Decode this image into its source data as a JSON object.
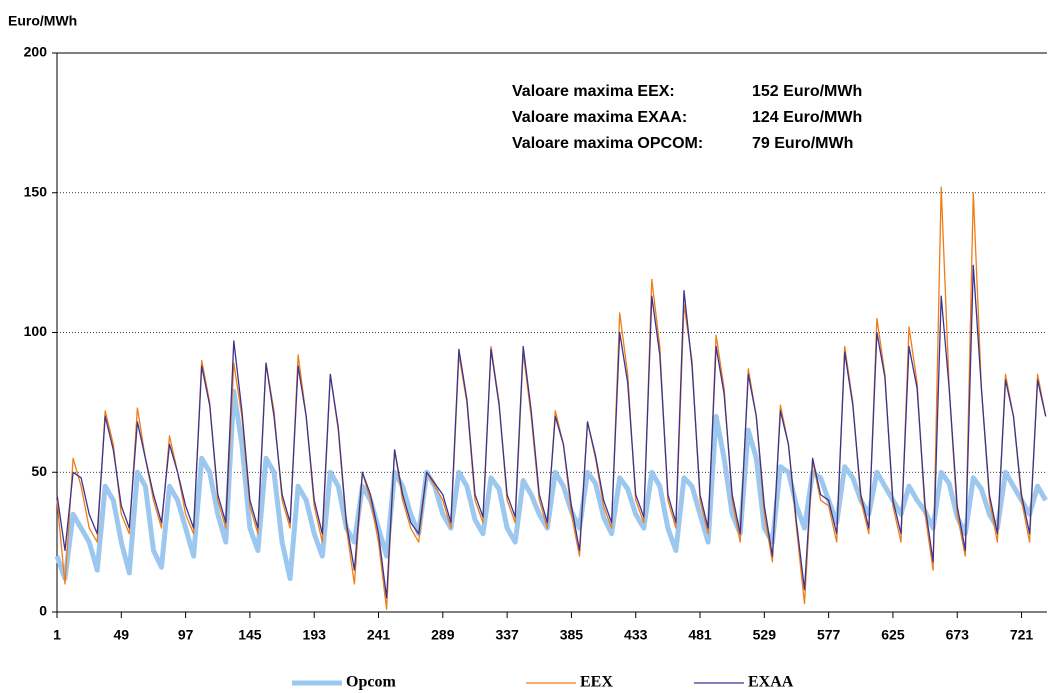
{
  "chart_data": {
    "type": "line",
    "y_label": "Euro/MWh",
    "annotations": [
      {
        "text": "Valoare maxima EEX:",
        "value_text": "152 Euro/MWh",
        "color": "#f07c18"
      },
      {
        "text": "Valoare maxima EXAA:",
        "value_text": "124 Euro/MWh",
        "color": "#3a3591"
      },
      {
        "text": "Valoare maxima OPCOM:",
        "value_text": "79 Euro/MWh",
        "color": "#9cc8f0"
      }
    ],
    "x": [
      1,
      7,
      13,
      19,
      25,
      31,
      37,
      43,
      49,
      55,
      61,
      67,
      73,
      79,
      85,
      91,
      97,
      103,
      109,
      115,
      121,
      127,
      133,
      139,
      145,
      151,
      157,
      163,
      169,
      175,
      181,
      187,
      193,
      199,
      205,
      211,
      217,
      223,
      229,
      235,
      241,
      247,
      253,
      259,
      265,
      271,
      277,
      283,
      289,
      295,
      301,
      307,
      313,
      319,
      325,
      331,
      337,
      343,
      349,
      355,
      361,
      367,
      373,
      379,
      385,
      391,
      397,
      403,
      409,
      415,
      421,
      427,
      433,
      439,
      445,
      451,
      457,
      463,
      469,
      475,
      481,
      487,
      493,
      499,
      505,
      511,
      517,
      523,
      529,
      535,
      541,
      547,
      553,
      559,
      565,
      571,
      577,
      583,
      589,
      595,
      601,
      607,
      613,
      619,
      625,
      631,
      637,
      643,
      649,
      655,
      661,
      667,
      673,
      679,
      685,
      691,
      697,
      703,
      709,
      715,
      721,
      727,
      733,
      739
    ],
    "series": [
      {
        "name": "Opcom",
        "color": "#9cc8f0",
        "width": 5,
        "values": [
          20,
          12,
          35,
          30,
          25,
          15,
          45,
          40,
          25,
          14,
          50,
          45,
          22,
          16,
          45,
          40,
          30,
          20,
          55,
          50,
          35,
          25,
          79,
          60,
          30,
          22,
          55,
          50,
          25,
          12,
          45,
          40,
          28,
          20,
          50,
          45,
          30,
          25,
          45,
          40,
          30,
          20,
          50,
          45,
          35,
          28,
          50,
          45,
          35,
          30,
          50,
          45,
          33,
          28,
          48,
          44,
          30,
          25,
          47,
          42,
          35,
          30,
          50,
          45,
          36,
          30,
          50,
          46,
          34,
          28,
          48,
          44,
          35,
          30,
          50,
          45,
          30,
          22,
          48,
          45,
          35,
          25,
          70,
          55,
          35,
          28,
          65,
          55,
          30,
          25,
          52,
          50,
          38,
          30,
          50,
          48,
          40,
          32,
          52,
          48,
          40,
          35,
          50,
          45,
          40,
          35,
          45,
          40,
          36,
          30,
          50,
          46,
          34,
          28,
          48,
          44,
          35,
          30,
          50,
          45,
          40,
          35,
          45,
          40
        ]
      },
      {
        "name": "EEX",
        "color": "#f07c18",
        "width": 1.3,
        "values": [
          40,
          10,
          55,
          45,
          30,
          25,
          72,
          60,
          35,
          28,
          73,
          55,
          40,
          30,
          63,
          50,
          35,
          28,
          90,
          75,
          40,
          30,
          89,
          70,
          38,
          28,
          89,
          72,
          40,
          30,
          92,
          70,
          38,
          25,
          85,
          65,
          30,
          10,
          50,
          40,
          25,
          1,
          58,
          40,
          30,
          25,
          50,
          45,
          40,
          30,
          92,
          75,
          40,
          32,
          95,
          75,
          40,
          32,
          93,
          70,
          40,
          30,
          72,
          60,
          35,
          20,
          68,
          55,
          38,
          30,
          107,
          85,
          40,
          32,
          119,
          95,
          40,
          30,
          110,
          90,
          40,
          28,
          99,
          80,
          40,
          25,
          87,
          70,
          35,
          18,
          74,
          60,
          30,
          3,
          54,
          40,
          38,
          25,
          95,
          75,
          40,
          28,
          105,
          85,
          38,
          25,
          102,
          82,
          35,
          15,
          152,
          80,
          35,
          20,
          150,
          80,
          40,
          25,
          85,
          70,
          40,
          25,
          85,
          70
        ]
      },
      {
        "name": "EXAA",
        "color": "#3a3591",
        "width": 1.3,
        "values": [
          42,
          22,
          50,
          48,
          35,
          28,
          70,
          58,
          38,
          30,
          68,
          55,
          42,
          32,
          60,
          50,
          38,
          30,
          88,
          74,
          42,
          32,
          97,
          72,
          40,
          30,
          89,
          70,
          42,
          32,
          88,
          70,
          40,
          28,
          85,
          66,
          32,
          15,
          50,
          42,
          28,
          5,
          58,
          42,
          32,
          28,
          50,
          46,
          42,
          32,
          94,
          76,
          42,
          34,
          94,
          74,
          42,
          34,
          95,
          72,
          42,
          32,
          70,
          60,
          38,
          22,
          68,
          56,
          40,
          32,
          100,
          82,
          42,
          34,
          113,
          92,
          42,
          32,
          115,
          88,
          42,
          30,
          95,
          78,
          42,
          28,
          85,
          70,
          38,
          20,
          72,
          60,
          32,
          8,
          55,
          42,
          40,
          28,
          93,
          74,
          42,
          30,
          100,
          84,
          40,
          28,
          95,
          80,
          38,
          18,
          113,
          80,
          38,
          22,
          124,
          80,
          42,
          28,
          83,
          70,
          42,
          28,
          83,
          70
        ]
      }
    ],
    "xlim": [
      1,
      740
    ],
    "xticks": [
      1,
      49,
      97,
      145,
      193,
      241,
      289,
      337,
      385,
      433,
      481,
      529,
      577,
      625,
      673,
      721
    ],
    "ylim": [
      0,
      200
    ],
    "yticks": [
      0,
      50,
      100,
      150,
      200
    ],
    "grid": true
  }
}
